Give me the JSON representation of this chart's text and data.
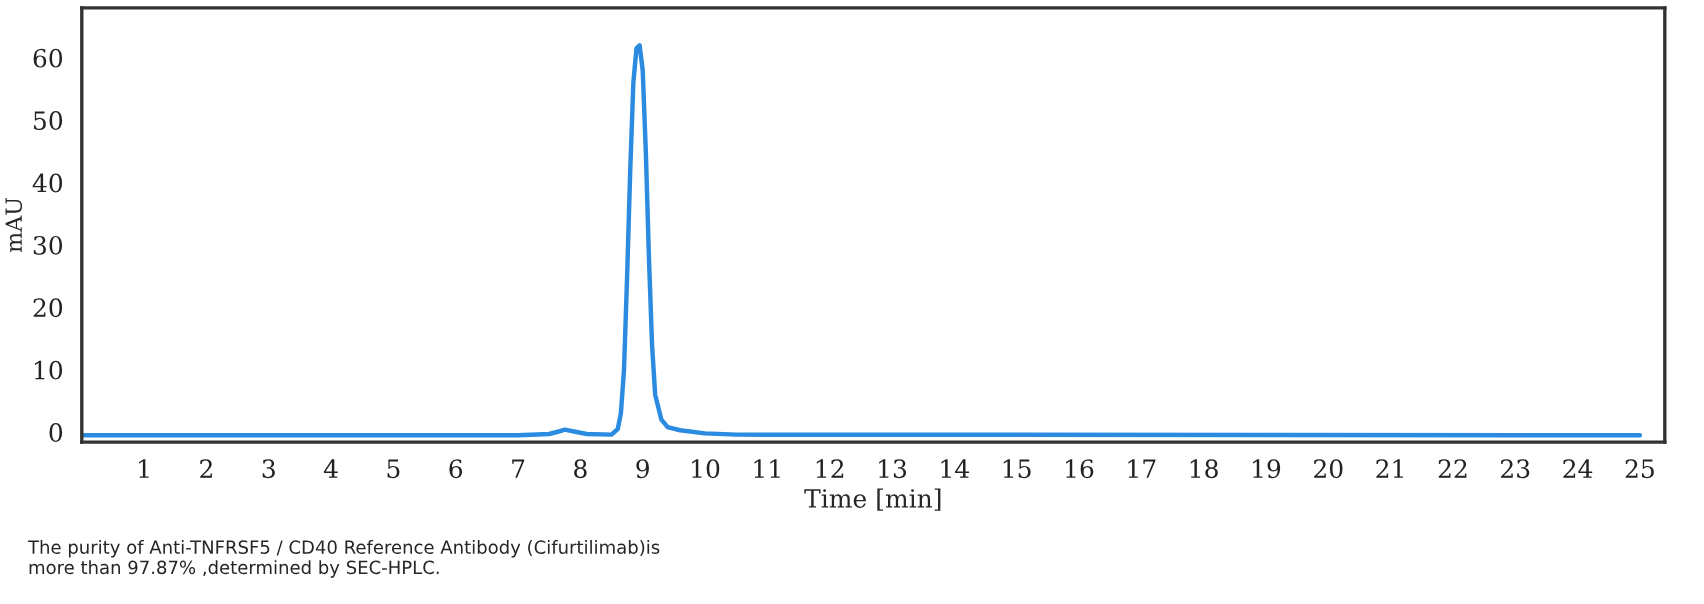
{
  "chart_data": {
    "type": "line",
    "xlabel": "Time [min]",
    "ylabel": "mAU",
    "x": [
      0,
      7.0,
      7.5,
      7.65,
      7.75,
      7.9,
      8.1,
      8.5,
      8.6,
      8.65,
      8.7,
      8.75,
      8.8,
      8.85,
      8.9,
      8.95,
      9.0,
      9.05,
      9.1,
      9.15,
      9.2,
      9.3,
      9.4,
      9.6,
      10.0,
      10.5,
      25
    ],
    "series": [
      {
        "color": "#2a8be0",
        "values": [
          -0.5,
          -0.5,
          -0.3,
          0.1,
          0.4,
          0.1,
          -0.3,
          -0.4,
          0.5,
          3,
          10,
          25,
          42,
          56,
          61.5,
          62,
          58,
          45,
          28,
          14,
          6,
          2,
          0.8,
          0.3,
          -0.2,
          -0.4,
          -0.5
        ]
      }
    ],
    "xlim": [
      0,
      25.4
    ],
    "ylim": [
      -1.6,
      68
    ],
    "xticks": [
      1,
      2,
      3,
      4,
      5,
      6,
      7,
      8,
      9,
      10,
      11,
      12,
      13,
      14,
      15,
      16,
      17,
      18,
      19,
      20,
      21,
      22,
      23,
      24,
      25
    ],
    "yticks": [
      0,
      10,
      20,
      30,
      40,
      50,
      60
    ],
    "marker": "none",
    "line_style": "solid",
    "annotations": [
      "The purity of Anti-TNFRSF5 / CD40 Reference Antibody (Cifurtilimab)is\nmore than 97.87% ,determined by SEC-HPLC."
    ]
  }
}
